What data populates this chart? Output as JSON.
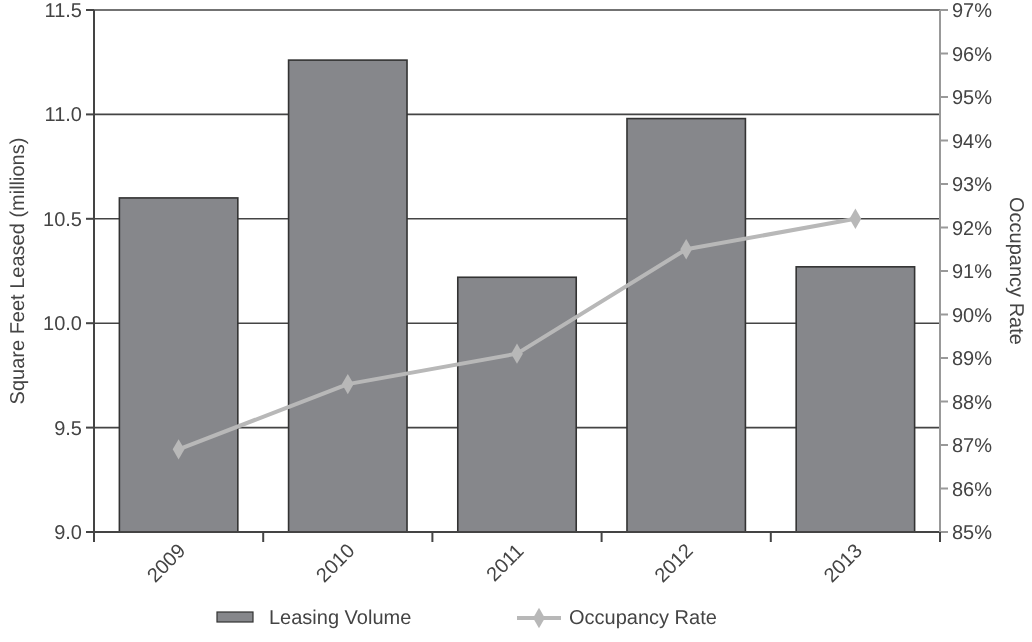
{
  "chart_data": {
    "type": "bar",
    "ylabel": "Square Feet Leased (millions)",
    "y2label": "Occupancy Rate",
    "categories": [
      "2009",
      "2010",
      "2011",
      "2012",
      "2013"
    ],
    "series": [
      {
        "name": "Leasing Volume",
        "color": "#86878b",
        "values": [
          10.6,
          11.26,
          10.22,
          10.98,
          10.27
        ]
      },
      {
        "name": "Occupancy Rate",
        "type": "line",
        "axis": "y2",
        "color": "#b8b8b8",
        "marker": "diamond",
        "values": [
          86.9,
          88.4,
          89.1,
          91.5,
          92.2
        ]
      }
    ],
    "ylim": [
      9,
      11.5
    ],
    "yticks": [
      {
        "value": 9,
        "label": "9.0"
      },
      {
        "value": 9.5,
        "label": "9.5"
      },
      {
        "value": 10,
        "label": "10.0"
      },
      {
        "value": 10.5,
        "label": "10.5"
      },
      {
        "value": 11,
        "label": "11.0"
      },
      {
        "value": 11.5,
        "label": "11.5"
      }
    ],
    "y2lim": [
      85,
      97
    ],
    "y2ticks": [
      {
        "value": 85,
        "label": "85%"
      },
      {
        "value": 86,
        "label": "86%"
      },
      {
        "value": 87,
        "label": "87%"
      },
      {
        "value": 88,
        "label": "88%"
      },
      {
        "value": 89,
        "label": "89%"
      },
      {
        "value": 90,
        "label": "90%"
      },
      {
        "value": 91,
        "label": "91%"
      },
      {
        "value": 92,
        "label": "92%"
      },
      {
        "value": 93,
        "label": "93%"
      },
      {
        "value": 94,
        "label": "94%"
      },
      {
        "value": 95,
        "label": "95%"
      },
      {
        "value": 96,
        "label": "96%"
      },
      {
        "value": 97,
        "label": "97%"
      }
    ],
    "grid": "y",
    "legend": "bottom"
  }
}
